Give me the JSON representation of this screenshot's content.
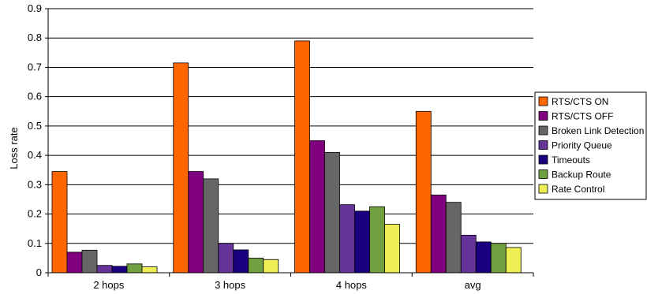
{
  "chart_data": {
    "type": "bar",
    "title": "",
    "xlabel": "",
    "ylabel": "Loss rate",
    "ylim": [
      0,
      0.9
    ],
    "yticks": [
      "0",
      "0.1",
      "0.2",
      "0.3",
      "0.4",
      "0.5",
      "0.6",
      "0.7",
      "0.8",
      "0.9"
    ],
    "grid": "horizontal",
    "legend_position": "right",
    "categories": [
      "2 hops",
      "3 hops",
      "4 hops",
      "avg"
    ],
    "series": [
      {
        "name": "RTS/CTS ON",
        "color": "#ff6600",
        "values": [
          0.345,
          0.715,
          0.79,
          0.55
        ]
      },
      {
        "name": "RTS/CTS OFF",
        "color": "#800080",
        "values": [
          0.07,
          0.345,
          0.45,
          0.265
        ]
      },
      {
        "name": "Broken Link Detection",
        "color": "#666666",
        "values": [
          0.077,
          0.32,
          0.41,
          0.24
        ]
      },
      {
        "name": "Priority Queue",
        "color": "#663399",
        "values": [
          0.025,
          0.1,
          0.232,
          0.128
        ]
      },
      {
        "name": "Timeouts",
        "color": "#1a0080",
        "values": [
          0.022,
          0.078,
          0.21,
          0.105
        ]
      },
      {
        "name": "Backup Route",
        "color": "#70a040",
        "values": [
          0.03,
          0.05,
          0.225,
          0.1
        ]
      },
      {
        "name": "Rate Control",
        "color": "#eeee55",
        "values": [
          0.02,
          0.045,
          0.165,
          0.086
        ]
      }
    ]
  }
}
